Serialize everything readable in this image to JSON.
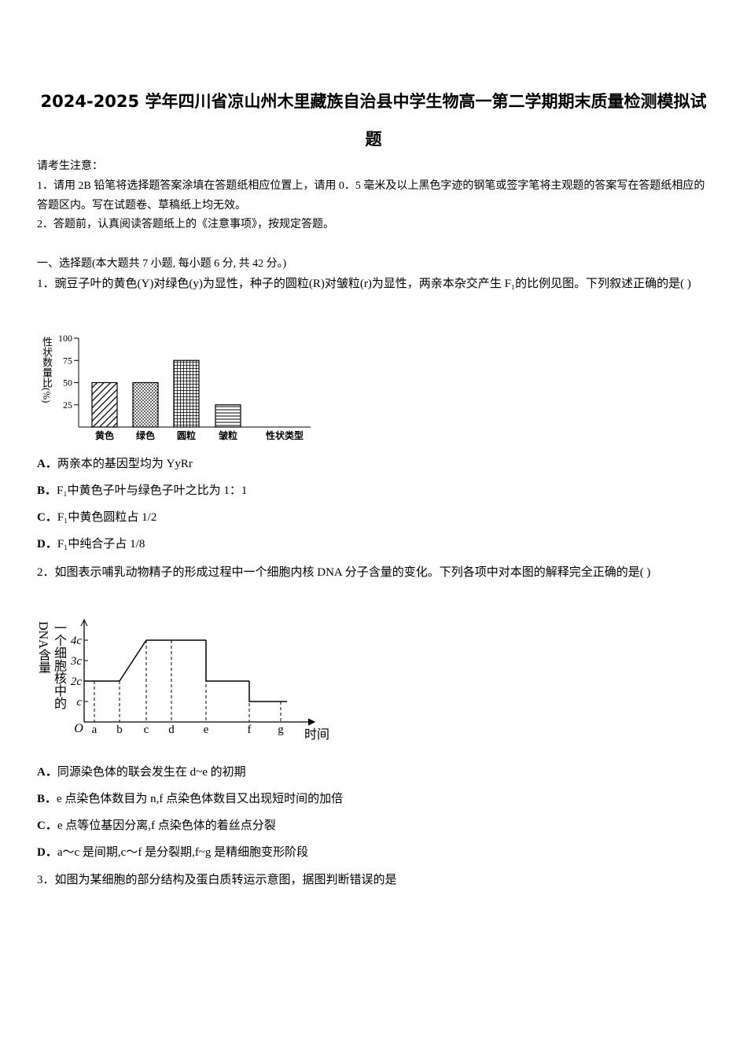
{
  "title": "2024-2025 学年四川省凉山州木里藏族自治县中学生物高一第二学期期末质量检测模拟试题",
  "notice": {
    "heading": "请考生注意：",
    "items": [
      "1．请用 2B 铅笔将选择题答案涂填在答题纸相应位置上，请用 0．5 毫米及以上黑色字迹的钢笔或签字笔将主观题的答案写在答题纸相应的答题区内。写在试题卷、草稿纸上均无效。",
      "2．答题前，认真阅读答题纸上的《注意事项》，按规定答题。"
    ]
  },
  "section": "一、选择题(本大题共 7 小题, 每小题 6 分, 共 42 分。)",
  "questions": [
    {
      "number": "1．",
      "text": "豌豆子叶的黄色(Y)对绿色(y)为显性，种子的圆粒(R)对皱粒(r)为显性，两亲本杂交产生 F₁的比例见图。下列叙述正确的是(    )",
      "chart_data": {
        "type": "bar",
        "y_label": "性状数量比(%)",
        "x_label": "性状类型",
        "categories": [
          "黄色",
          "绿色",
          "圆粒",
          "皱粒"
        ],
        "values": [
          50,
          50,
          75,
          25
        ],
        "patterns": [
          "diagonal",
          "dots",
          "grid",
          "horizontal"
        ],
        "color": "#000000",
        "ylim": [
          0,
          100
        ],
        "yticks": [
          25,
          50,
          75,
          100
        ]
      },
      "options": [
        {
          "label": "A．",
          "text": "两亲本的基因型均为 YyRr"
        },
        {
          "label": "B．",
          "text": "F₁中黄色子叶与绿色子叶之比为 1：1"
        },
        {
          "label": "C．",
          "text": "F₁中黄色圆粒占 1/2"
        },
        {
          "label": "D．",
          "text": "F₁中纯合子占 1/8"
        }
      ]
    },
    {
      "number": "2．",
      "text": "如图表示哺乳动物精子的形成过程中一个细胞内核 DNA 分子含量的变化。下列各项中对本图的解释完全正确的是(      )",
      "chart_data": {
        "type": "line",
        "y_label": "一个细胞核中的DNA含量",
        "x_label": "时间",
        "origin_label": "O",
        "categories": [
          "a",
          "b",
          "c",
          "d",
          "e",
          "f",
          "g"
        ],
        "values": [
          2,
          2,
          4,
          4,
          4,
          2,
          1
        ],
        "color": "#000000",
        "ylim": [
          0,
          5
        ],
        "yticks": [
          {
            "value": 1,
            "label": "c"
          },
          {
            "value": 2,
            "label": "2c"
          },
          {
            "value": 3,
            "label": "3c"
          },
          {
            "value": 4,
            "label": "4c"
          }
        ]
      },
      "options": [
        {
          "label": "A．",
          "text": "同源染色体的联会发生在 d~e 的初期"
        },
        {
          "label": "B．",
          "text": "e 点染色体数目为 n,f 点染色体数目又出现短时间的加倍"
        },
        {
          "label": "C．",
          "text": "e 点等位基因分离,f 点染色体的着丝点分裂"
        },
        {
          "label": "D．",
          "text": "a～c 是间期,c～f 是分裂期,f~g 是精细胞变形阶段"
        }
      ]
    },
    {
      "number": "3．",
      "text": "如图为某细胞的部分结构及蛋白质转运示意图，据图判断错误的是"
    }
  ]
}
